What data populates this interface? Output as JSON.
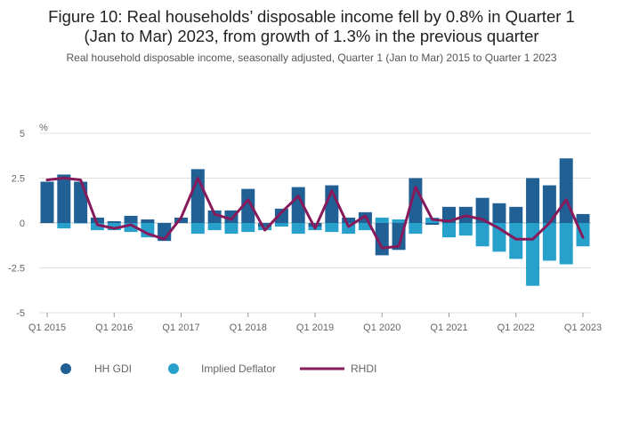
{
  "title_line1": "Figure 10: Real households’ disposable income fell by 0.8% in Quarter 1",
  "title_line2": "(Jan to Mar) 2023, from growth of 1.3% in the previous quarter",
  "subtitle": "Real household disposable income, seasonally adjusted, Quarter 1 (Jan to Mar) 2015 to Quarter 1 2023",
  "colors": {
    "gdi": "#206095",
    "deflator": "#27a0cc",
    "rhdi": "#871a5b",
    "grid": "#e0e0e0",
    "zero": "#bbbbbb"
  },
  "chart_data": {
    "type": "bar",
    "ylabel": "%",
    "ylim": [
      -5,
      5
    ],
    "yticks": [
      "5",
      "2.5",
      "0",
      "-2.5",
      "-5"
    ],
    "ytick_values": [
      5,
      2.5,
      0,
      -2.5,
      -5
    ],
    "categories": [
      "Q1 2015",
      "Q2 2015",
      "Q3 2015",
      "Q4 2015",
      "Q1 2016",
      "Q2 2016",
      "Q3 2016",
      "Q4 2016",
      "Q1 2017",
      "Q2 2017",
      "Q3 2017",
      "Q4 2017",
      "Q1 2018",
      "Q2 2018",
      "Q3 2018",
      "Q4 2018",
      "Q1 2019",
      "Q2 2019",
      "Q3 2019",
      "Q4 2019",
      "Q1 2020",
      "Q2 2020",
      "Q3 2020",
      "Q4 2020",
      "Q1 2021",
      "Q2 2021",
      "Q3 2021",
      "Q4 2021",
      "Q1 2022",
      "Q2 2022",
      "Q3 2022",
      "Q4 2022",
      "Q1 2023"
    ],
    "xtick_labels": [
      "Q1 2015",
      "Q1 2016",
      "Q1 2017",
      "Q1 2018",
      "Q1 2019",
      "Q1 2020",
      "Q1 2021",
      "Q1 2022",
      "Q1 2023"
    ],
    "xtick_indices": [
      0,
      4,
      8,
      12,
      16,
      20,
      24,
      28,
      32
    ],
    "series": [
      {
        "name": "HH GDI",
        "type": "bar",
        "values": [
          2.3,
          2.7,
          2.3,
          0.3,
          0.1,
          0.4,
          0.2,
          -1.0,
          0.3,
          3.0,
          0.7,
          0.7,
          1.9,
          -0.2,
          0.8,
          2.0,
          -0.2,
          2.1,
          0.3,
          0.6,
          -1.8,
          -1.5,
          2.5,
          -0.1,
          0.9,
          0.9,
          1.4,
          1.1,
          0.9,
          2.5,
          2.1,
          3.6,
          0.5
        ]
      },
      {
        "name": "Implied Deflator",
        "type": "bar",
        "values": [
          0.8,
          -0.3,
          0.0,
          -0.4,
          -0.4,
          -0.5,
          -0.8,
          -0.8,
          0.1,
          -0.6,
          -0.4,
          -0.6,
          -0.5,
          -0.4,
          -0.2,
          -0.6,
          -0.4,
          -0.5,
          -0.6,
          -0.4,
          0.3,
          0.2,
          -0.6,
          0.3,
          -0.8,
          -0.7,
          -1.3,
          -1.6,
          -2.0,
          -3.5,
          -2.1,
          -2.3,
          -1.3
        ]
      },
      {
        "name": "RHDI",
        "type": "line",
        "values": [
          2.4,
          2.5,
          2.4,
          -0.1,
          -0.3,
          -0.1,
          -0.6,
          -0.9,
          0.3,
          2.5,
          0.5,
          0.2,
          1.3,
          -0.4,
          0.6,
          1.5,
          -0.3,
          1.8,
          -0.2,
          0.4,
          -1.4,
          -1.3,
          2.0,
          0.2,
          0.1,
          0.4,
          0.2,
          -0.3,
          -0.9,
          -0.9,
          0.0,
          1.3,
          -0.8
        ]
      }
    ],
    "legend_position": "bottom-left",
    "grid": true
  }
}
